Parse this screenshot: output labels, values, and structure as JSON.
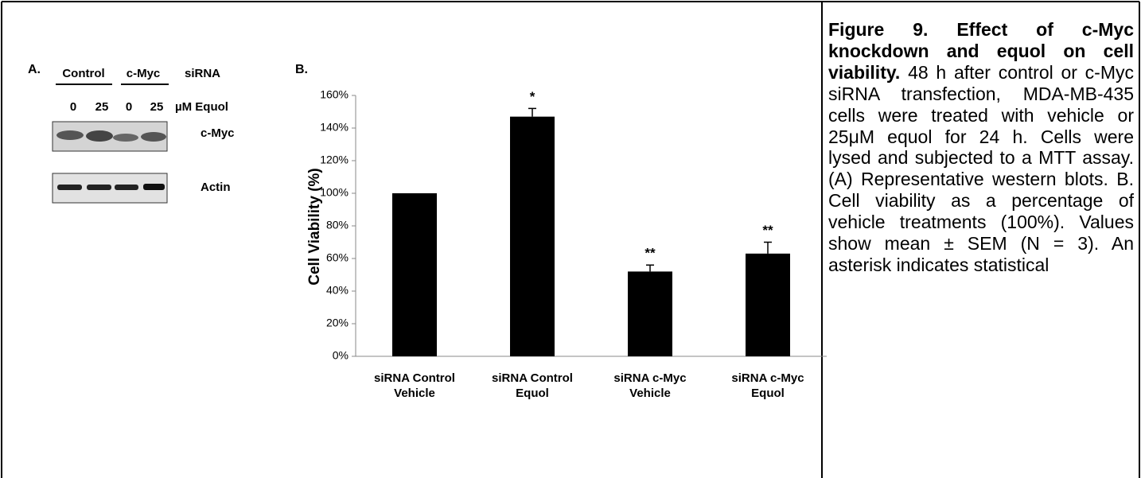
{
  "panel_a": {
    "label": "A.",
    "siRNA_groups": [
      "Control",
      "c-Myc"
    ],
    "siRNA_label": "siRNA",
    "doses": [
      "0",
      "25",
      "0",
      "25"
    ],
    "dose_label": "µM Equol",
    "blots": [
      "c-Myc",
      "Actin"
    ]
  },
  "chart_data": {
    "type": "bar",
    "panel_label": "B.",
    "y_label": "Cell Viability (%)",
    "categories": [
      "siRNA Control Vehicle",
      "siRNA Control Equol",
      "siRNA c-Myc Vehicle",
      "siRNA c-Myc Equol"
    ],
    "values": [
      100,
      147,
      52,
      63
    ],
    "errors": [
      null,
      5,
      4,
      7
    ],
    "annotations": [
      null,
      "*",
      "**",
      "**"
    ],
    "color": "#000000",
    "ylim": [
      0,
      160
    ],
    "yticks": [
      {
        "value": 0,
        "label": "0%"
      },
      {
        "value": 20,
        "label": "20%"
      },
      {
        "value": 40,
        "label": "40%"
      },
      {
        "value": 60,
        "label": "60%"
      },
      {
        "value": 80,
        "label": "80%"
      },
      {
        "value": 100,
        "label": "100%"
      },
      {
        "value": 120,
        "label": "120%"
      },
      {
        "value": 140,
        "label": "140%"
      },
      {
        "value": 160,
        "label": "160%"
      }
    ]
  },
  "caption": {
    "title": "Figure 9. Effect of c-Myc knockdown and equol on cell viability.",
    "text": "48 h after control or c-Myc siRNA transfection, MDA-MB-435 cells were treated with vehicle or 25μM equol for 24 h. Cells were lysed and subjected to a MTT assay. (A) Representative western blots. B. Cell viability as a percentage of vehicle treatments (100%). Values show mean ± SEM (N = 3). An asterisk indicates statistical"
  }
}
